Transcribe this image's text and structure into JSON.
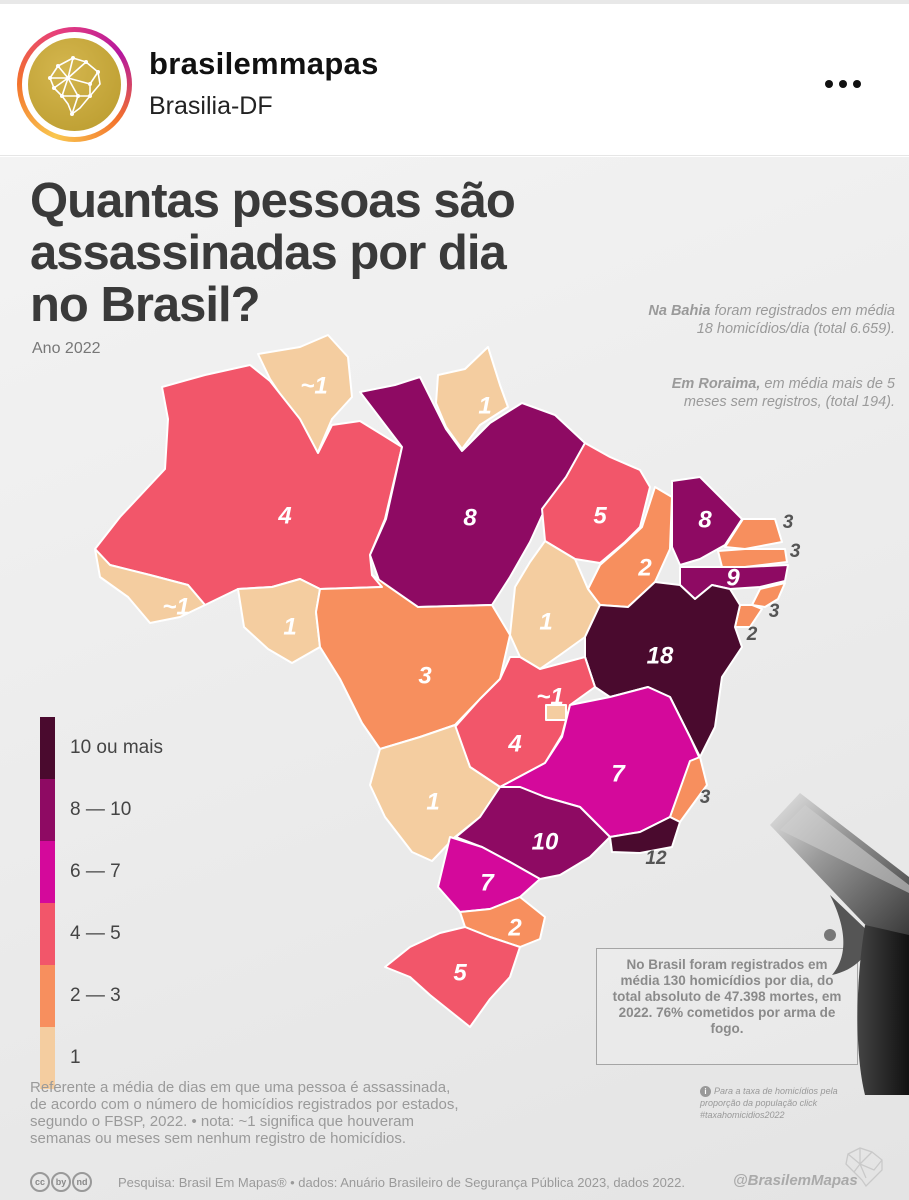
{
  "profile": {
    "username": "brasilemmapas",
    "location": "Brasilia-DF",
    "more_icon": "more-horizontal-icon"
  },
  "infographic": {
    "title": "Quantas pessoas são assassinadas por dia no Brasil?",
    "year": "Ano 2022",
    "notes": {
      "bahia_bold": "Na Bahia",
      "bahia_text": " foram registrados em média 18 homicídios/dia (total 6.659).",
      "roraima_bold": "Em Roraima,",
      "roraima_text": " em média mais de 5 meses sem registros, (total 194)."
    },
    "legend": [
      {
        "label": "10 ou mais",
        "color": "#4a0a2e"
      },
      {
        "label": "8 — 10",
        "color": "#8e0a63"
      },
      {
        "label": "6 — 7",
        "color": "#d4099b"
      },
      {
        "label": "4 — 5",
        "color": "#f2566a"
      },
      {
        "label": "2 — 3",
        "color": "#f78f5e"
      },
      {
        "label": "1",
        "color": "#f4cda0"
      }
    ],
    "states": [
      {
        "state": "RR",
        "value": "~1",
        "color": "#f4cda0"
      },
      {
        "state": "AP",
        "value": "1",
        "color": "#f4cda0"
      },
      {
        "state": "AM",
        "value": "4",
        "color": "#f2566a"
      },
      {
        "state": "PA",
        "value": "8",
        "color": "#8e0a63"
      },
      {
        "state": "MA",
        "value": "5",
        "color": "#f2566a"
      },
      {
        "state": "PI",
        "value": "2",
        "color": "#f78f5e"
      },
      {
        "state": "CE",
        "value": "8",
        "color": "#8e0a63"
      },
      {
        "state": "RN",
        "value": "3",
        "color": "#f78f5e"
      },
      {
        "state": "PB",
        "value": "3",
        "color": "#f78f5e"
      },
      {
        "state": "PE",
        "value": "9",
        "color": "#8e0a63"
      },
      {
        "state": "AL",
        "value": "3",
        "color": "#f78f5e"
      },
      {
        "state": "SE",
        "value": "2",
        "color": "#f78f5e"
      },
      {
        "state": "AC",
        "value": "~1",
        "color": "#f4cda0"
      },
      {
        "state": "RO",
        "value": "1",
        "color": "#f4cda0"
      },
      {
        "state": "MT",
        "value": "3",
        "color": "#f78f5e"
      },
      {
        "state": "TO",
        "value": "1",
        "color": "#f4cda0"
      },
      {
        "state": "BA",
        "value": "18",
        "color": "#4a0a2e"
      },
      {
        "state": "GO",
        "value": "4",
        "color": "#f2566a"
      },
      {
        "state": "DF",
        "value": "~1",
        "color": "#f4cda0"
      },
      {
        "state": "MG",
        "value": "7",
        "color": "#d4099b"
      },
      {
        "state": "ES",
        "value": "3",
        "color": "#f78f5e"
      },
      {
        "state": "MS",
        "value": "1",
        "color": "#f4cda0"
      },
      {
        "state": "SP",
        "value": "10",
        "color": "#8e0a63"
      },
      {
        "state": "RJ",
        "value": "12",
        "color": "#4a0a2e"
      },
      {
        "state": "PR",
        "value": "7",
        "color": "#d4099b"
      },
      {
        "state": "SC",
        "value": "2",
        "color": "#f78f5e"
      },
      {
        "state": "RS",
        "value": "5",
        "color": "#f2566a"
      }
    ],
    "footnote": "Referente a média de dias em que uma pessoa é assassinada, de acordo com o número de homicídios registrados por estados, segundo o FBSP, 2022.  • nota: ~1 significa que houveram semanas ou meses sem nenhum registro de homicídios.",
    "summary": "No Brasil foram registrados em média 130 homicídios por dia, do total absoluto de 47.398 mortes, em 2022. 76% cometidos por arma de fogo.",
    "rate_note": "Para a taxa de homicídios pela proporção da população click #taxahomicidios2022",
    "source": "Pesquisa: Brasil Em Mapas®  •  dados: Anuário Brasileiro de Segurança Pública 2023, dados 2022.",
    "cc_icons": [
      "cc",
      "by",
      "nd"
    ],
    "handle": "@BrasilemMapas",
    "decorations": [
      "pistol-image",
      "brasil-em-mapas-logo"
    ]
  }
}
